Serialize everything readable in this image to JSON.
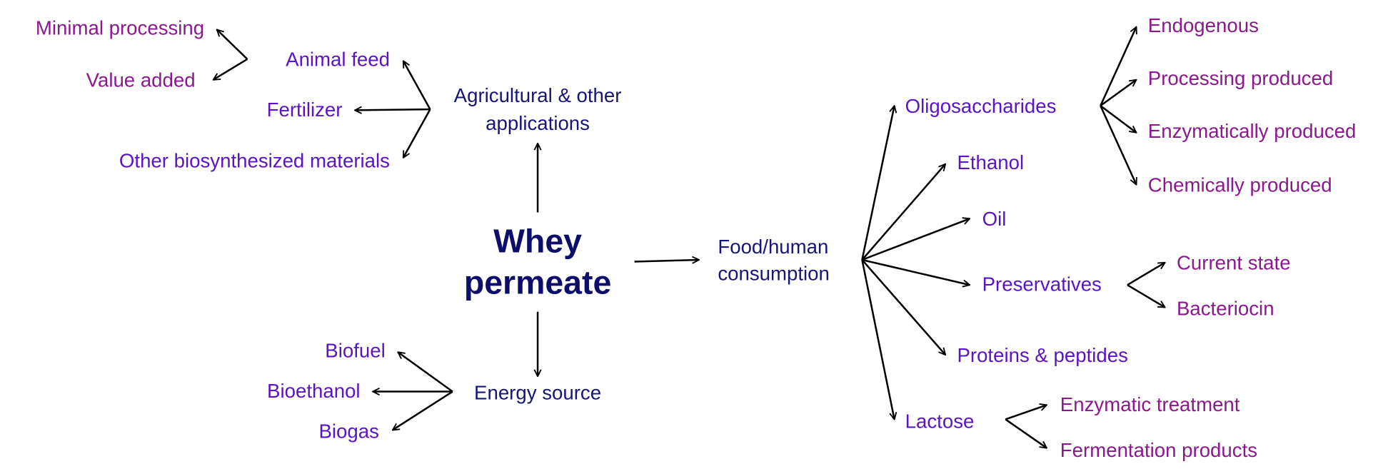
{
  "root": {
    "lines": [
      "Whey",
      "permeate"
    ]
  },
  "branches": [
    {
      "lines": [
        "Agricultural & other",
        "applications"
      ],
      "children": [
        {
          "label": "Animal feed",
          "children": [
            {
              "label": "Minimal processing"
            },
            {
              "label": "Value added"
            }
          ]
        },
        {
          "label": "Fertilizer"
        },
        {
          "label": "Other biosynthesized materials"
        }
      ]
    },
    {
      "lines": [
        "Energy source"
      ],
      "children": [
        {
          "label": "Biofuel"
        },
        {
          "label": "Bioethanol"
        },
        {
          "label": "Biogas"
        }
      ]
    },
    {
      "lines": [
        "Food/human",
        "consumption"
      ],
      "children": [
        {
          "label": "Oligosaccharides",
          "children": [
            {
              "label": "Endogenous"
            },
            {
              "label": "Processing produced"
            },
            {
              "label": "Enzymatically produced"
            },
            {
              "label": "Chemically produced"
            }
          ]
        },
        {
          "label": "Ethanol"
        },
        {
          "label": "Oil"
        },
        {
          "label": "Preservatives",
          "children": [
            {
              "label": "Current state"
            },
            {
              "label": "Bacteriocin"
            }
          ]
        },
        {
          "label": "Proteins & peptides"
        },
        {
          "label": "Lactose",
          "children": [
            {
              "label": "Enzymatic treatment"
            },
            {
              "label": "Fermentation products"
            }
          ]
        }
      ]
    }
  ]
}
